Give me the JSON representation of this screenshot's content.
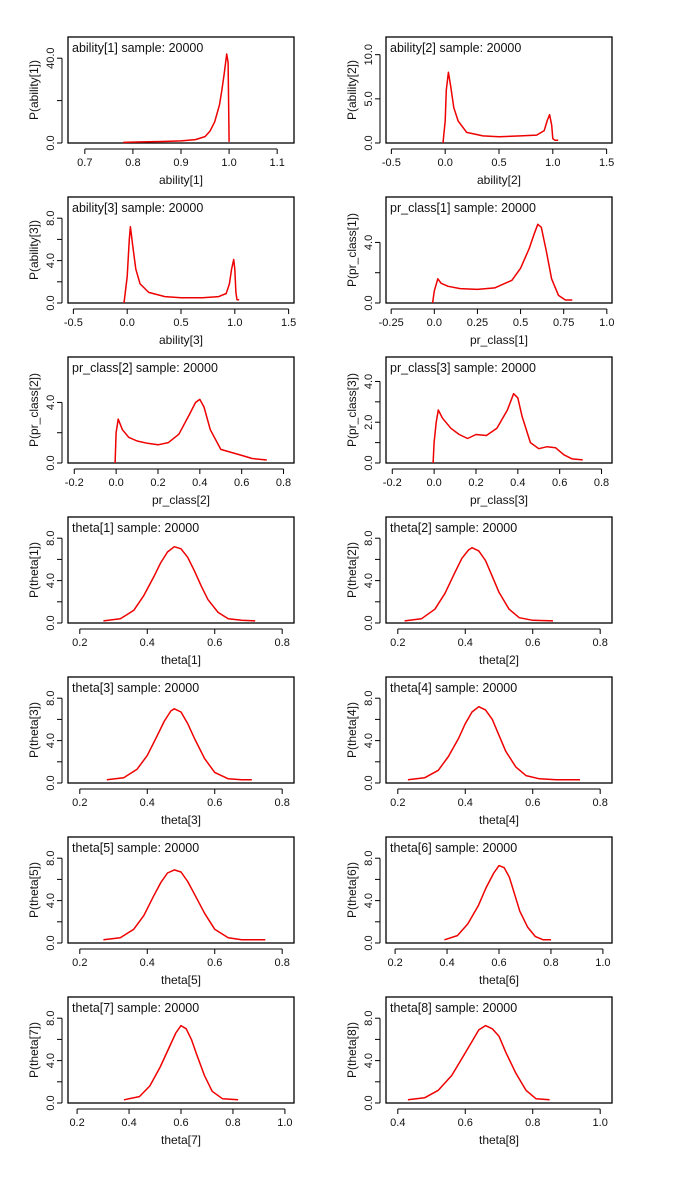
{
  "chart_data": [
    {
      "type": "line",
      "title": "ability[1] sample: 20000",
      "xlabel": "ability[1]",
      "ylabel": "P(ability[1])",
      "xlim": [
        0.665,
        1.135
      ],
      "ylim": [
        0,
        50
      ],
      "xticks": [
        0.7,
        0.8,
        0.9,
        1.0,
        1.1
      ],
      "xtick_labels": [
        "0.7",
        "0.8",
        "0.9",
        "1.0",
        "1.1"
      ],
      "yticks": [
        0,
        20,
        40
      ],
      "ytick_labels": [
        "0.0",
        "",
        "40.0"
      ],
      "series": [
        {
          "color": "#ee0000",
          "x": [
            0.78,
            0.82,
            0.86,
            0.9,
            0.93,
            0.95,
            0.96,
            0.97,
            0.98,
            0.985,
            0.99,
            0.995,
            0.998,
            1.0
          ],
          "y": [
            0.3,
            0.5,
            0.7,
            1.0,
            1.6,
            3.0,
            5.5,
            10,
            18,
            25,
            33,
            42,
            38,
            0.5
          ]
        }
      ]
    },
    {
      "type": "line",
      "title": "ability[2] sample: 20000",
      "xlabel": "ability[2]",
      "ylabel": "P(ability[2])",
      "xlim": [
        -0.55,
        1.55
      ],
      "ylim": [
        0,
        12
      ],
      "xticks": [
        -0.5,
        0,
        0.5,
        1.0,
        1.5
      ],
      "xtick_labels": [
        "-0.5",
        "0.0",
        "0.5",
        "1.0",
        "1.5"
      ],
      "yticks": [
        0,
        5,
        10
      ],
      "ytick_labels": [
        "0.0",
        "5.0",
        "10.0"
      ],
      "series": [
        {
          "color": "#ee0000",
          "x": [
            -0.02,
            0.0,
            0.01,
            0.03,
            0.05,
            0.08,
            0.12,
            0.2,
            0.35,
            0.5,
            0.7,
            0.85,
            0.92,
            0.95,
            0.97,
            0.99,
            1.0,
            1.02,
            1.05
          ],
          "y": [
            0,
            2.5,
            6,
            8,
            6.5,
            4,
            2.5,
            1.2,
            0.8,
            0.7,
            0.8,
            0.9,
            1.4,
            2.6,
            3.2,
            2.0,
            0.5,
            0.3,
            0.3
          ]
        }
      ]
    },
    {
      "type": "line",
      "title": "ability[3] sample: 20000",
      "xlabel": "ability[3]",
      "ylabel": "P(ability[3])",
      "xlim": [
        -0.55,
        1.55
      ],
      "ylim": [
        0,
        10
      ],
      "xticks": [
        -0.5,
        0,
        0.5,
        1.0,
        1.5
      ],
      "xtick_labels": [
        "-0.5",
        "0.0",
        "0.5",
        "1.0",
        "1.5"
      ],
      "yticks": [
        0,
        2,
        4,
        6,
        8
      ],
      "ytick_labels": [
        "0.0",
        "",
        "4.0",
        "",
        "8.0"
      ],
      "series": [
        {
          "color": "#ee0000",
          "x": [
            -0.03,
            0.0,
            0.02,
            0.03,
            0.05,
            0.08,
            0.12,
            0.2,
            0.35,
            0.5,
            0.7,
            0.85,
            0.92,
            0.95,
            0.97,
            0.99,
            1.0,
            1.01,
            1.02,
            1.04
          ],
          "y": [
            0,
            2.5,
            6,
            7.2,
            5.5,
            3.2,
            1.8,
            1.0,
            0.6,
            0.5,
            0.5,
            0.6,
            0.9,
            1.8,
            3.2,
            4.1,
            3.2,
            1.0,
            0.3,
            0.3
          ]
        }
      ]
    },
    {
      "type": "line",
      "title": "pr_class[1] sample: 20000",
      "xlabel": "pr_class[1]",
      "ylabel": "P(pr_class[1])",
      "xlim": [
        -0.28,
        1.03
      ],
      "ylim": [
        0,
        7
      ],
      "xticks": [
        -0.25,
        0,
        0.25,
        0.5,
        0.75,
        1.0
      ],
      "xtick_labels": [
        "-0.25",
        "0.0",
        "0.25",
        "0.5",
        "0.75",
        "1.0"
      ],
      "yticks": [
        0,
        2,
        4
      ],
      "ytick_labels": [
        "0.0",
        "",
        "4.0"
      ],
      "series": [
        {
          "color": "#ee0000",
          "x": [
            -0.01,
            0.0,
            0.02,
            0.04,
            0.08,
            0.15,
            0.25,
            0.35,
            0.45,
            0.5,
            0.55,
            0.58,
            0.6,
            0.62,
            0.65,
            0.68,
            0.72,
            0.76,
            0.8
          ],
          "y": [
            0,
            0.8,
            1.6,
            1.3,
            1.1,
            0.95,
            0.9,
            1.0,
            1.5,
            2.3,
            3.6,
            4.6,
            5.2,
            5.0,
            3.4,
            1.6,
            0.5,
            0.2,
            0.2
          ]
        }
      ]
    },
    {
      "type": "line",
      "title": "pr_class[2] sample: 20000",
      "xlabel": "pr_class[2]",
      "ylabel": "P(pr_class[2])",
      "xlim": [
        -0.23,
        0.85
      ],
      "ylim": [
        0,
        7
      ],
      "xticks": [
        -0.2,
        0,
        0.2,
        0.4,
        0.6,
        0.8
      ],
      "xtick_labels": [
        "-0.2",
        "0.0",
        "0.2",
        "0.4",
        "0.6",
        "0.8"
      ],
      "yticks": [
        0,
        2,
        4
      ],
      "ytick_labels": [
        "0.0",
        "",
        "4.0"
      ],
      "series": [
        {
          "color": "#ee0000",
          "x": [
            -0.005,
            0.0,
            0.01,
            0.03,
            0.06,
            0.1,
            0.15,
            0.2,
            0.25,
            0.3,
            0.35,
            0.38,
            0.4,
            0.42,
            0.45,
            0.5,
            0.55,
            0.6,
            0.65,
            0.72
          ],
          "y": [
            0,
            2.0,
            2.9,
            2.2,
            1.7,
            1.45,
            1.3,
            1.2,
            1.35,
            1.9,
            3.2,
            4.0,
            4.2,
            3.7,
            2.2,
            0.9,
            0.7,
            0.5,
            0.3,
            0.2
          ]
        }
      ]
    },
    {
      "type": "line",
      "title": "pr_class[3] sample: 20000",
      "xlabel": "pr_class[3]",
      "ylabel": "P(pr_class[3])",
      "xlim": [
        -0.23,
        0.85
      ],
      "ylim": [
        0,
        5.2
      ],
      "xticks": [
        -0.2,
        0,
        0.2,
        0.4,
        0.6,
        0.8
      ],
      "xtick_labels": [
        "-0.2",
        "0.0",
        "0.2",
        "0.4",
        "0.6",
        "0.8"
      ],
      "yticks": [
        0,
        1,
        2,
        3,
        4
      ],
      "ytick_labels": [
        "0.0",
        "",
        "2.0",
        "",
        "4.0"
      ],
      "series": [
        {
          "color": "#ee0000",
          "x": [
            -0.005,
            0.0,
            0.01,
            0.02,
            0.04,
            0.08,
            0.12,
            0.16,
            0.2,
            0.25,
            0.3,
            0.35,
            0.38,
            0.4,
            0.42,
            0.46,
            0.5,
            0.54,
            0.58,
            0.62,
            0.66,
            0.71
          ],
          "y": [
            0,
            1.0,
            2.0,
            2.6,
            2.2,
            1.7,
            1.4,
            1.2,
            1.4,
            1.35,
            1.7,
            2.6,
            3.4,
            3.2,
            2.3,
            1.0,
            0.7,
            0.8,
            0.75,
            0.4,
            0.2,
            0.15
          ]
        }
      ]
    },
    {
      "type": "line",
      "title": "theta[1] sample: 20000",
      "xlabel": "theta[1]",
      "ylabel": "P(theta[1])",
      "xlim": [
        0.165,
        0.835
      ],
      "ylim": [
        0,
        10
      ],
      "xticks": [
        0.2,
        0.4,
        0.6,
        0.8
      ],
      "xtick_labels": [
        "0.2",
        "0.4",
        "0.6",
        "0.8"
      ],
      "yticks": [
        0,
        2,
        4,
        6,
        8
      ],
      "ytick_labels": [
        "0.0",
        "",
        "4.0",
        "",
        "8.0"
      ],
      "series": [
        {
          "color": "#ee0000",
          "x": [
            0.27,
            0.32,
            0.36,
            0.39,
            0.42,
            0.44,
            0.46,
            0.48,
            0.5,
            0.52,
            0.54,
            0.56,
            0.58,
            0.61,
            0.64,
            0.68,
            0.72
          ],
          "y": [
            0.2,
            0.4,
            1.2,
            2.6,
            4.4,
            5.7,
            6.7,
            7.2,
            7.0,
            6.2,
            4.9,
            3.5,
            2.2,
            1.0,
            0.4,
            0.25,
            0.2
          ]
        }
      ]
    },
    {
      "type": "line",
      "title": "theta[2] sample: 20000",
      "xlabel": "theta[2]",
      "ylabel": "P(theta[2])",
      "xlim": [
        0.165,
        0.835
      ],
      "ylim": [
        0,
        10
      ],
      "xticks": [
        0.2,
        0.4,
        0.6,
        0.8
      ],
      "xtick_labels": [
        "0.2",
        "0.4",
        "0.6",
        "0.8"
      ],
      "yticks": [
        0,
        2,
        4,
        6,
        8
      ],
      "ytick_labels": [
        "0.0",
        "",
        "4.0",
        "",
        "8.0"
      ],
      "series": [
        {
          "color": "#ee0000",
          "x": [
            0.22,
            0.27,
            0.31,
            0.34,
            0.37,
            0.39,
            0.41,
            0.42,
            0.44,
            0.46,
            0.48,
            0.5,
            0.53,
            0.56,
            0.6,
            0.66
          ],
          "y": [
            0.2,
            0.4,
            1.3,
            2.8,
            4.8,
            6.1,
            6.9,
            7.1,
            6.8,
            5.9,
            4.4,
            2.9,
            1.3,
            0.5,
            0.25,
            0.2
          ]
        }
      ]
    },
    {
      "type": "line",
      "title": "theta[3] sample: 20000",
      "xlabel": "theta[3]",
      "ylabel": "P(theta[3])",
      "xlim": [
        0.165,
        0.835
      ],
      "ylim": [
        0,
        10
      ],
      "xticks": [
        0.2,
        0.4,
        0.6,
        0.8
      ],
      "xtick_labels": [
        "0.2",
        "0.4",
        "0.6",
        "0.8"
      ],
      "yticks": [
        0,
        2,
        4,
        6,
        8
      ],
      "ytick_labels": [
        "0.0",
        "",
        "4.0",
        "",
        "8.0"
      ],
      "series": [
        {
          "color": "#ee0000",
          "x": [
            0.28,
            0.33,
            0.37,
            0.4,
            0.43,
            0.45,
            0.47,
            0.48,
            0.5,
            0.52,
            0.54,
            0.57,
            0.6,
            0.64,
            0.68,
            0.71
          ],
          "y": [
            0.3,
            0.5,
            1.3,
            2.6,
            4.5,
            5.8,
            6.8,
            7.0,
            6.7,
            5.6,
            4.2,
            2.3,
            1.0,
            0.4,
            0.3,
            0.3
          ]
        }
      ]
    },
    {
      "type": "line",
      "title": "theta[4] sample: 20000",
      "xlabel": "theta[4]",
      "ylabel": "P(theta[4])",
      "xlim": [
        0.165,
        0.835
      ],
      "ylim": [
        0,
        10
      ],
      "xticks": [
        0.2,
        0.4,
        0.6,
        0.8
      ],
      "xtick_labels": [
        "0.2",
        "0.4",
        "0.6",
        "0.8"
      ],
      "yticks": [
        0,
        2,
        4,
        6,
        8
      ],
      "ytick_labels": [
        "0.0",
        "",
        "4.0",
        "",
        "8.0"
      ],
      "series": [
        {
          "color": "#ee0000",
          "x": [
            0.23,
            0.28,
            0.32,
            0.35,
            0.38,
            0.4,
            0.42,
            0.44,
            0.46,
            0.48,
            0.5,
            0.52,
            0.55,
            0.58,
            0.62,
            0.67,
            0.74
          ],
          "y": [
            0.3,
            0.5,
            1.2,
            2.5,
            4.2,
            5.6,
            6.7,
            7.2,
            6.9,
            6.0,
            4.5,
            3.0,
            1.5,
            0.7,
            0.4,
            0.3,
            0.3
          ]
        }
      ]
    },
    {
      "type": "line",
      "title": "theta[5] sample: 20000",
      "xlabel": "theta[5]",
      "ylabel": "P(theta[5])",
      "xlim": [
        0.165,
        0.835
      ],
      "ylim": [
        0,
        10
      ],
      "xticks": [
        0.2,
        0.4,
        0.6,
        0.8
      ],
      "xtick_labels": [
        "0.2",
        "0.4",
        "0.6",
        "0.8"
      ],
      "yticks": [
        0,
        2,
        4,
        6,
        8
      ],
      "ytick_labels": [
        "0.0",
        "",
        "4.0",
        "",
        "8.0"
      ],
      "series": [
        {
          "color": "#ee0000",
          "x": [
            0.27,
            0.32,
            0.36,
            0.39,
            0.42,
            0.44,
            0.46,
            0.48,
            0.5,
            0.52,
            0.54,
            0.57,
            0.6,
            0.64,
            0.68,
            0.75
          ],
          "y": [
            0.3,
            0.5,
            1.3,
            2.6,
            4.5,
            5.7,
            6.6,
            6.9,
            6.7,
            5.8,
            4.6,
            2.8,
            1.3,
            0.5,
            0.3,
            0.3
          ]
        }
      ]
    },
    {
      "type": "line",
      "title": "theta[6] sample: 20000",
      "xlabel": "theta[6]",
      "ylabel": "P(theta[6])",
      "xlim": [
        0.165,
        1.035
      ],
      "ylim": [
        0,
        10
      ],
      "xticks": [
        0.2,
        0.4,
        0.6,
        0.8,
        1.0
      ],
      "xtick_labels": [
        "0.2",
        "0.4",
        "0.6",
        "0.8",
        "1.0"
      ],
      "yticks": [
        0,
        2,
        4,
        6,
        8
      ],
      "ytick_labels": [
        "0.0",
        "",
        "4.0",
        "",
        "8.0"
      ],
      "series": [
        {
          "color": "#ee0000",
          "x": [
            0.39,
            0.44,
            0.48,
            0.52,
            0.55,
            0.58,
            0.6,
            0.62,
            0.64,
            0.66,
            0.68,
            0.71,
            0.74,
            0.77,
            0.8
          ],
          "y": [
            0.3,
            0.7,
            1.8,
            3.5,
            5.2,
            6.6,
            7.3,
            7.1,
            6.2,
            4.6,
            3.0,
            1.5,
            0.6,
            0.3,
            0.3
          ]
        }
      ]
    },
    {
      "type": "line",
      "title": "theta[7] sample: 20000",
      "xlabel": "theta[7]",
      "ylabel": "P(theta[7])",
      "xlim": [
        0.165,
        1.035
      ],
      "ylim": [
        0,
        10
      ],
      "xticks": [
        0.2,
        0.4,
        0.6,
        0.8,
        1.0
      ],
      "xtick_labels": [
        "0.2",
        "0.4",
        "0.6",
        "0.8",
        "1.0"
      ],
      "yticks": [
        0,
        2,
        4,
        6,
        8
      ],
      "ytick_labels": [
        "0.0",
        "",
        "4.0",
        "",
        "8.0"
      ],
      "series": [
        {
          "color": "#ee0000",
          "x": [
            0.38,
            0.44,
            0.48,
            0.52,
            0.55,
            0.58,
            0.6,
            0.62,
            0.64,
            0.66,
            0.69,
            0.72,
            0.76,
            0.82
          ],
          "y": [
            0.3,
            0.6,
            1.6,
            3.4,
            5.0,
            6.6,
            7.3,
            7.0,
            6.0,
            4.6,
            2.6,
            1.1,
            0.4,
            0.3
          ]
        }
      ]
    },
    {
      "type": "line",
      "title": "theta[8] sample: 20000",
      "xlabel": "theta[8]",
      "ylabel": "P(theta[8])",
      "xlim": [
        0.365,
        1.035
      ],
      "ylim": [
        0,
        10
      ],
      "xticks": [
        0.4,
        0.6,
        0.8,
        1.0
      ],
      "xtick_labels": [
        "0.4",
        "0.6",
        "0.8",
        "1.0"
      ],
      "yticks": [
        0,
        2,
        4,
        6,
        8
      ],
      "ytick_labels": [
        "0.0",
        "",
        "4.0",
        "",
        "8.0"
      ],
      "series": [
        {
          "color": "#ee0000",
          "x": [
            0.43,
            0.48,
            0.52,
            0.56,
            0.59,
            0.62,
            0.64,
            0.66,
            0.68,
            0.7,
            0.72,
            0.75,
            0.78,
            0.81,
            0.85
          ],
          "y": [
            0.3,
            0.5,
            1.2,
            2.6,
            4.2,
            5.8,
            6.9,
            7.3,
            7.0,
            6.3,
            4.8,
            2.8,
            1.2,
            0.4,
            0.3
          ]
        }
      ]
    }
  ]
}
